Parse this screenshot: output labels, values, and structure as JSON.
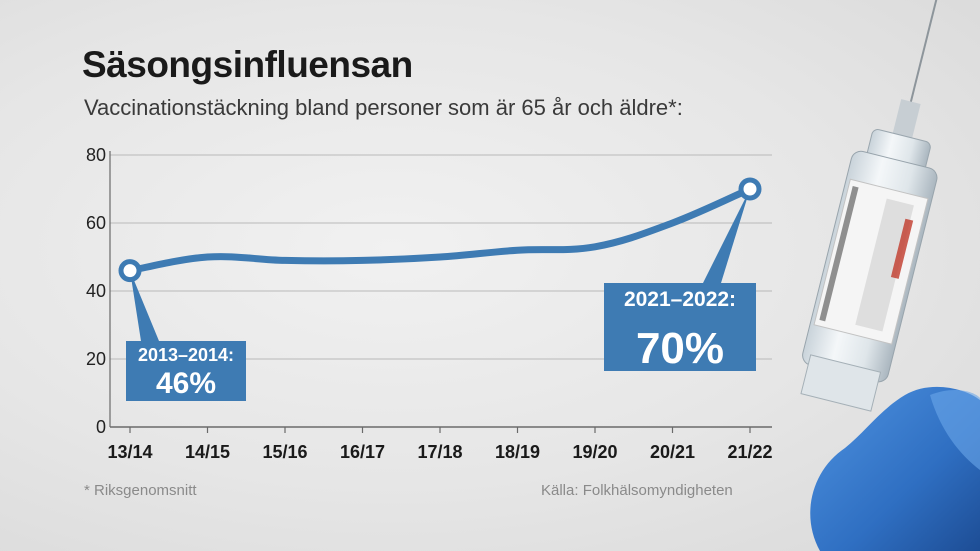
{
  "title": "Säsongsinfluensan",
  "subtitle": "Vaccinationstäckning bland personer som är 65 år och äldre*:",
  "footnote": "* Riksgenomsnitt",
  "source": "Källa: Folkhälsomyndigheten",
  "colors": {
    "line": "#3e7bb3",
    "callout": "#3e7bb3",
    "grid": "#b9b9b9"
  },
  "chart_data": {
    "type": "line",
    "categories": [
      "13/14",
      "14/15",
      "15/16",
      "16/17",
      "17/18",
      "18/19",
      "19/20",
      "20/21",
      "21/22"
    ],
    "values": [
      46,
      50,
      49,
      49,
      50,
      52,
      53,
      60,
      70
    ],
    "ylim": [
      0,
      80
    ],
    "yticks": [
      0,
      20,
      40,
      60,
      80
    ],
    "grid": true,
    "legend": "none",
    "annotations": [
      {
        "index": 0,
        "label": "2013–2014:",
        "value": "46%"
      },
      {
        "index": 8,
        "label": "2021–2022:",
        "value": "70%"
      }
    ]
  }
}
